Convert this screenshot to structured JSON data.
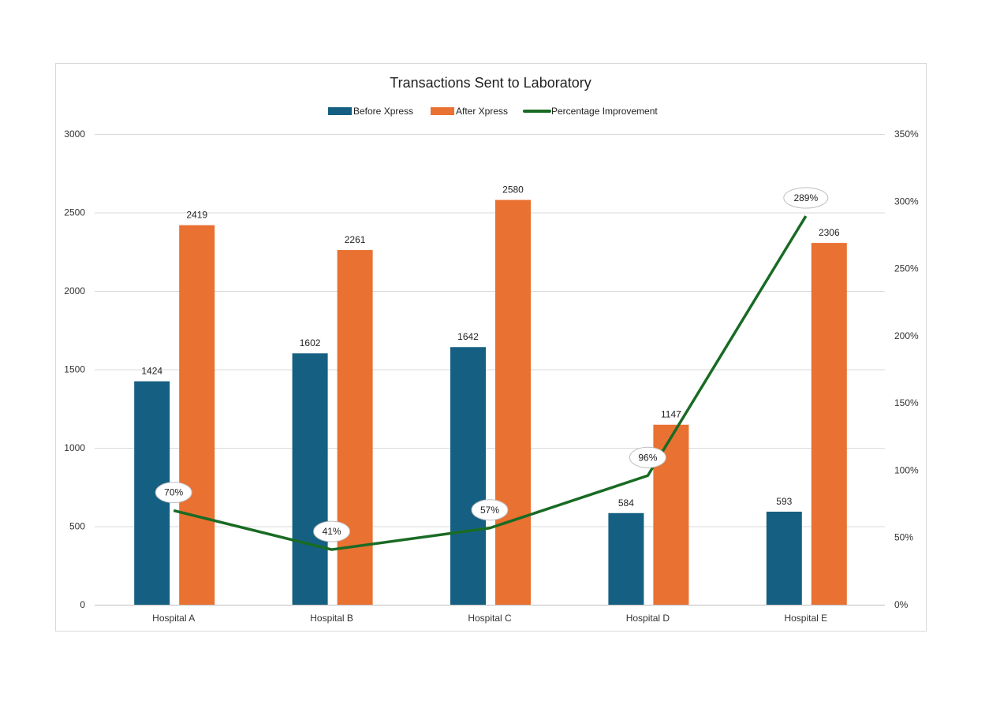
{
  "chart_data": {
    "type": "bar",
    "title": "Transactions Sent to Laboratory",
    "categories": [
      "Hospital A",
      "Hospital B",
      "Hospital C",
      "Hospital D",
      "Hospital E"
    ],
    "series": [
      {
        "name": "Before Xpress",
        "type": "bar",
        "axis": "left",
        "color": "#156082",
        "values": [
          1424,
          1602,
          1642,
          584,
          593
        ]
      },
      {
        "name": "After Xpress",
        "type": "bar",
        "axis": "left",
        "color": "#E97132",
        "values": [
          2419,
          2261,
          2580,
          1147,
          2306
        ]
      },
      {
        "name": "Percentage Improvement",
        "type": "line",
        "axis": "right",
        "color": "#196B24",
        "values": [
          70,
          41,
          57,
          96,
          289
        ],
        "labels": [
          "70%",
          "41%",
          "57%",
          "96%",
          "289%"
        ]
      }
    ],
    "y_left": {
      "range": [
        0,
        3000
      ],
      "ticks": [
        "0",
        "500",
        "1000",
        "1500",
        "2000",
        "2500",
        "3000"
      ]
    },
    "y_right": {
      "range": [
        0,
        350
      ],
      "ticks": [
        "0%",
        "50%",
        "100%",
        "150%",
        "200%",
        "250%",
        "300%",
        "350%"
      ]
    },
    "grid": true,
    "legend": "top"
  }
}
